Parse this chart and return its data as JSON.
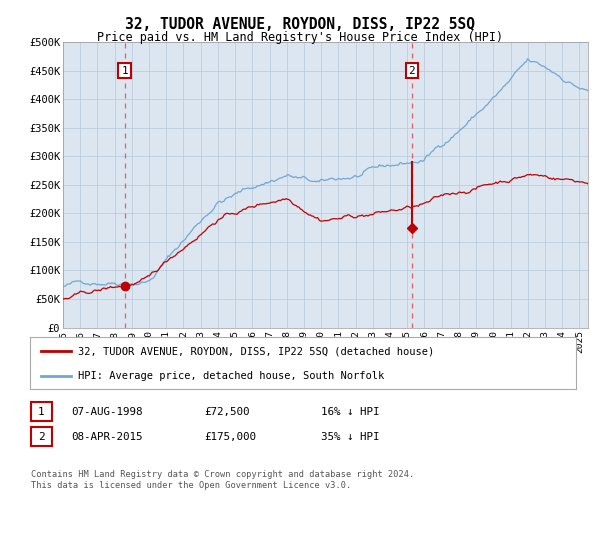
{
  "title": "32, TUDOR AVENUE, ROYDON, DISS, IP22 5SQ",
  "subtitle": "Price paid vs. HM Land Registry's House Price Index (HPI)",
  "background_color": "#ffffff",
  "plot_bg_color": "#dce6f1",
  "hpi_color": "#6fa8d4",
  "price_color": "#c00000",
  "vline_color": "#e06060",
  "sale1_date_x": 1998.58,
  "sale1_price": 72500,
  "sale2_date_x": 2015.27,
  "sale2_price": 175000,
  "annotation1": "1",
  "annotation2": "2",
  "legend_label1": "32, TUDOR AVENUE, ROYDON, DISS, IP22 5SQ (detached house)",
  "legend_label2": "HPI: Average price, detached house, South Norfolk",
  "table_row1": [
    "1",
    "07-AUG-1998",
    "£72,500",
    "16% ↓ HPI"
  ],
  "table_row2": [
    "2",
    "08-APR-2015",
    "£175,000",
    "35% ↓ HPI"
  ],
  "footer": "Contains HM Land Registry data © Crown copyright and database right 2024.\nThis data is licensed under the Open Government Licence v3.0.",
  "xmin": 1995,
  "xmax": 2025.5,
  "ymin": 0,
  "ymax": 500000,
  "yticks": [
    0,
    50000,
    100000,
    150000,
    200000,
    250000,
    300000,
    350000,
    400000,
    450000,
    500000
  ],
  "ytick_labels": [
    "£0",
    "£50K",
    "£100K",
    "£150K",
    "£200K",
    "£250K",
    "£300K",
    "£350K",
    "£400K",
    "£450K",
    "£500K"
  ]
}
